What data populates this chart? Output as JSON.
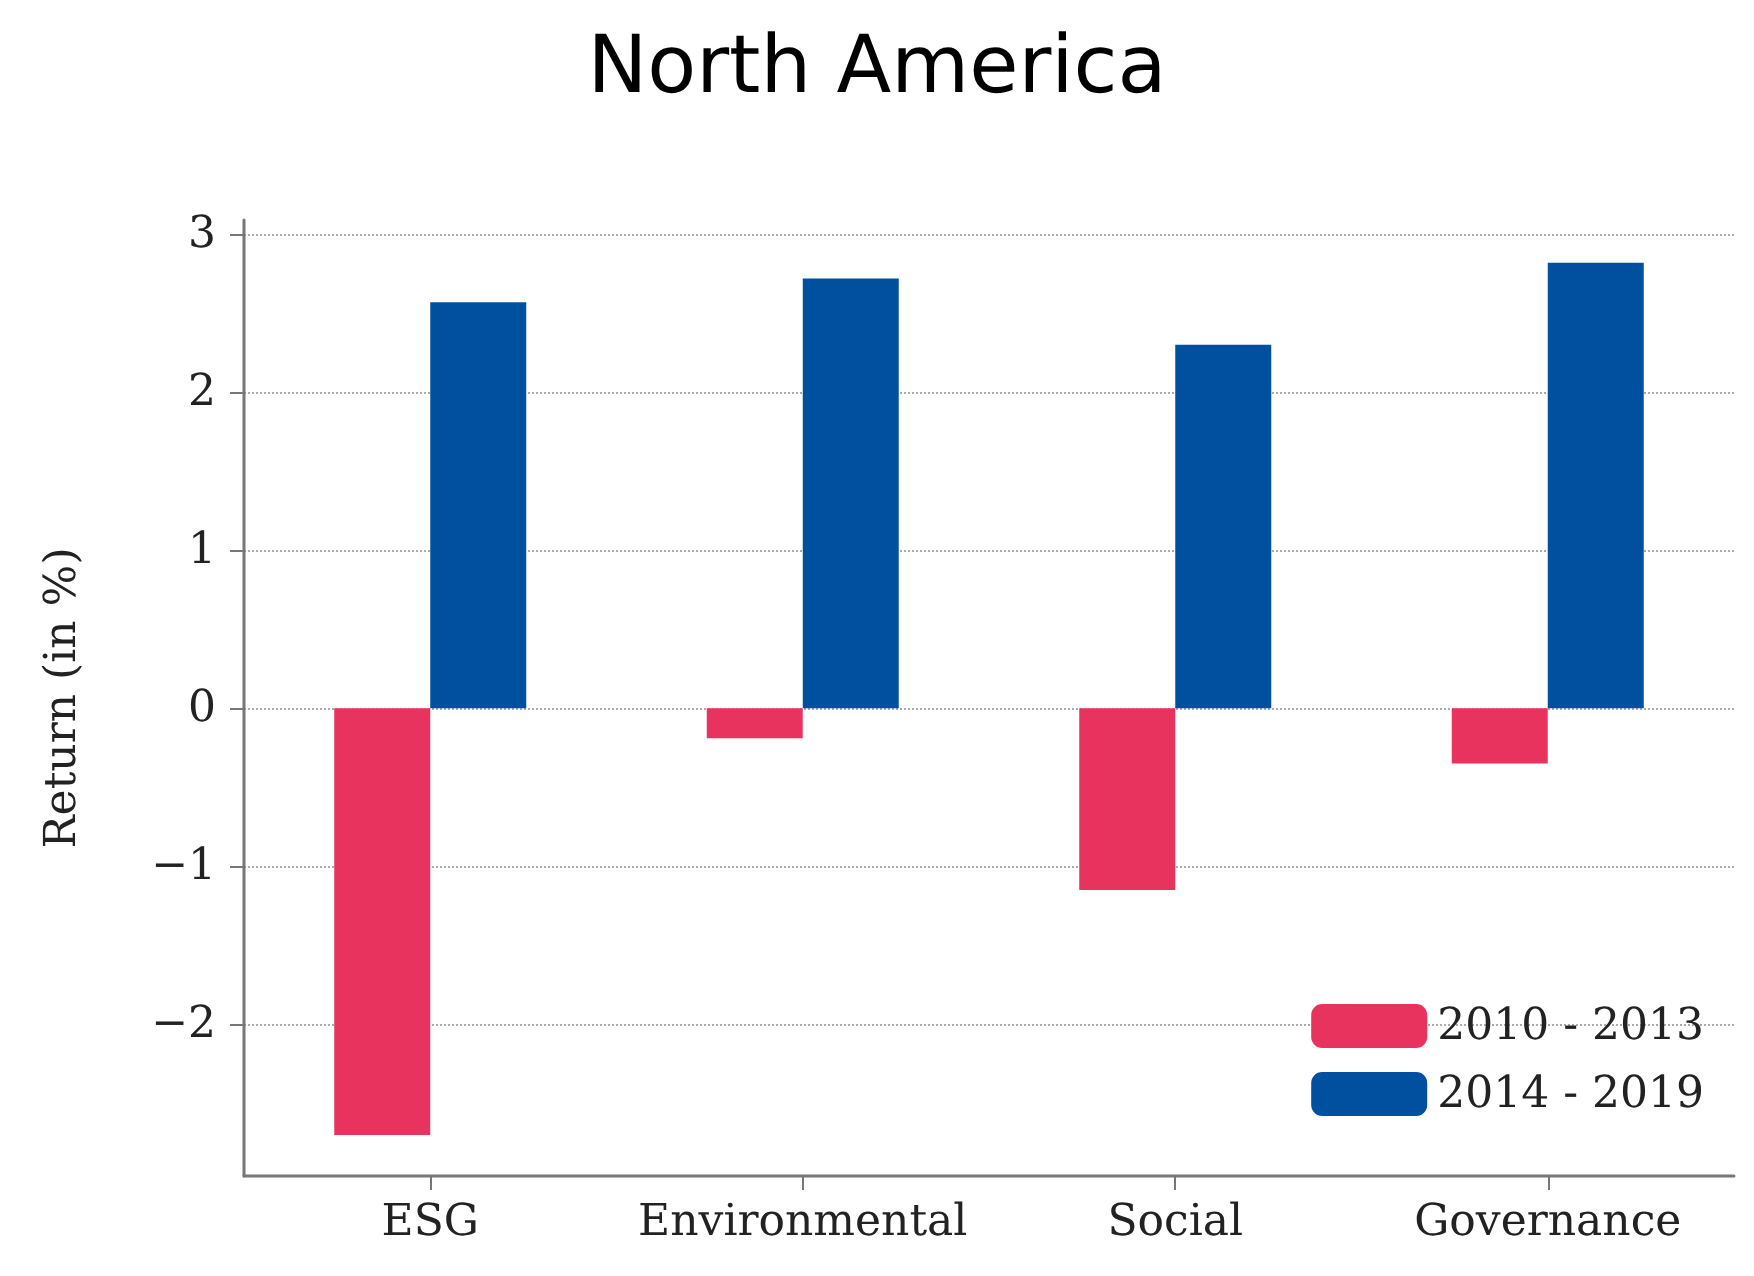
{
  "chart_data": {
    "type": "bar",
    "title": "North America",
    "ylabel": "Return (in %)",
    "categories": [
      "ESG",
      "Environmental",
      "Social",
      "Governance"
    ],
    "series": [
      {
        "name": "2010 - 2013",
        "color": "#e8335e",
        "values": [
          -2.7,
          -0.19,
          -1.15,
          -0.35
        ]
      },
      {
        "name": "2014 - 2019",
        "color": "#0050a0",
        "values": [
          2.57,
          2.72,
          2.3,
          2.82
        ]
      }
    ],
    "ylim": [
      -2.96,
      3.09
    ],
    "yticks": [
      -2,
      -1,
      0,
      1,
      2,
      3
    ],
    "grid": "y",
    "legend": "bottom right"
  }
}
